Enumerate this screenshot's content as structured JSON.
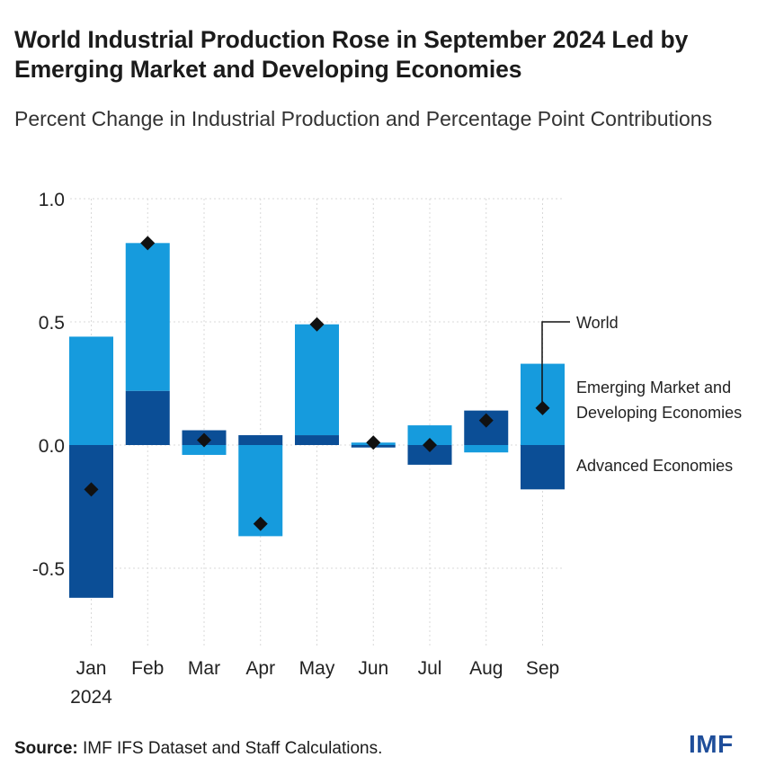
{
  "title": "World Industrial Production Rose in September 2024 Led by Emerging Market and Developing Economies",
  "subtitle": "Percent Change in Industrial Production and Percentage Point Contributions",
  "source_label": "Source:",
  "source_text": "IMF IFS Dataset and Staff Calculations.",
  "logo_text": "IMF",
  "colors": {
    "emde": "#169bdd",
    "advanced": "#0b4e96",
    "world": "#111111",
    "grid": "#d9d9d9"
  },
  "chart_data": {
    "type": "bar",
    "stacked": true,
    "categories": [
      "Jan",
      "Feb",
      "Mar",
      "Apr",
      "May",
      "Jun",
      "Jul",
      "Aug",
      "Sep"
    ],
    "year_label": "2024",
    "series": [
      {
        "name": "Emerging Market and Developing Economies",
        "values": [
          0.44,
          0.6,
          -0.04,
          -0.37,
          0.45,
          0.01,
          0.08,
          -0.03,
          0.33
        ]
      },
      {
        "name": "Advanced Economies",
        "values": [
          -0.62,
          0.22,
          0.06,
          0.04,
          0.04,
          -0.01,
          -0.08,
          0.14,
          -0.18
        ]
      },
      {
        "name": "World",
        "type": "marker",
        "values": [
          -0.18,
          0.82,
          0.02,
          -0.32,
          0.49,
          0.01,
          0.0,
          0.1,
          0.15
        ]
      }
    ],
    "ylim": [
      -0.6,
      1.0
    ],
    "yticks": [
      "1.0",
      "0.5",
      "0.0",
      "-0.5"
    ],
    "ytick_values": [
      1.0,
      0.5,
      0.0,
      -0.5
    ],
    "legend": {
      "world": "World",
      "emde_line1": "Emerging Market and",
      "emde_line2": "Developing Economies",
      "advanced": "Advanced Economies"
    }
  }
}
